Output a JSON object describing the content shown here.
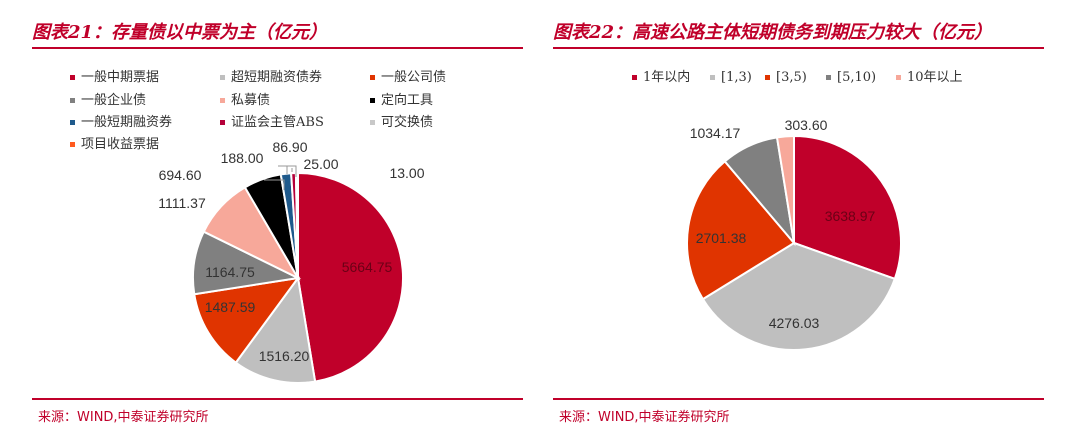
{
  "charts": [
    {
      "title": "图表21：存量债以中票为主（亿元）",
      "source": "来源：WIND,中泰证券研究所",
      "chart_data": {
        "type": "pie",
        "categories": [
          "一般中期票据",
          "超短期融资债券",
          "一般公司债",
          "一般企业债",
          "私募债",
          "定向工具",
          "一般短期融资券",
          "证监会主管ABS",
          "可交换债",
          "项目收益票据"
        ],
        "values": [
          5664.75,
          1516.2,
          1487.59,
          1164.75,
          1111.37,
          694.6,
          188.0,
          86.9,
          25.0,
          13.0
        ],
        "labels": [
          "5664.75",
          "1516.20",
          "1487.59",
          "1164.75",
          "1111.37",
          "694.60",
          "188.00",
          "86.90",
          "25.00",
          "13.00"
        ],
        "colors": [
          "#c0002a",
          "#bfbfbf",
          "#e03400",
          "#808080",
          "#f7a89a",
          "#000000",
          "#1f5a8c",
          "#b5003a",
          "#c8c8c8",
          "#ff5a1f"
        ],
        "legend_position": "top"
      }
    },
    {
      "title": "图表22：高速公路主体短期债务到期压力较大（亿元）",
      "source": "来源：WIND,中泰证券研究所",
      "chart_data": {
        "type": "pie",
        "categories": [
          "1年以内",
          "[1,3)",
          "[3,5)",
          "[5,10)",
          "10年以上"
        ],
        "values": [
          3638.97,
          4276.03,
          2701.38,
          1034.17,
          303.6
        ],
        "labels": [
          "3638.97",
          "4276.03",
          "2701.38",
          "1034.17",
          "303.60"
        ],
        "colors": [
          "#c0002a",
          "#bfbfbf",
          "#e03400",
          "#808080",
          "#f7a89a"
        ],
        "legend_position": "top"
      }
    }
  ]
}
